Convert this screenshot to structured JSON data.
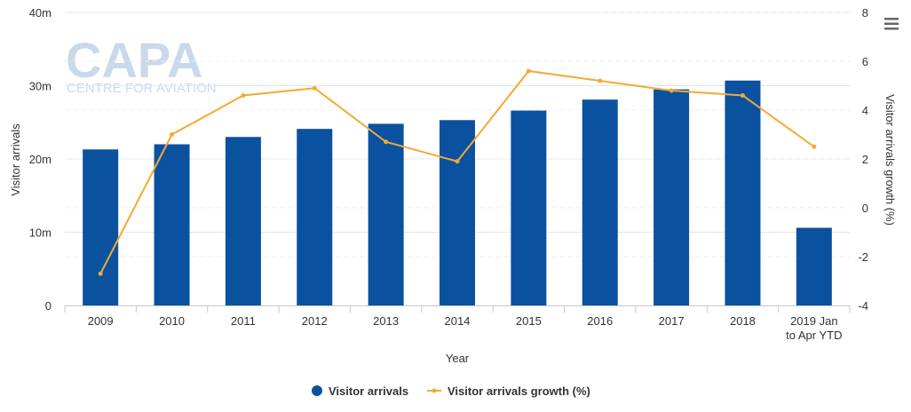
{
  "watermark": {
    "brand": "CAPA",
    "tagline": "CENTRE FOR AVIATION"
  },
  "chart_data": {
    "type": "bar+line",
    "categories": [
      "2009",
      "2010",
      "2011",
      "2012",
      "2013",
      "2014",
      "2015",
      "2016",
      "2017",
      "2018",
      "2019 Jan to Apr YTD"
    ],
    "category_lines": [
      [
        "2009"
      ],
      [
        "2010"
      ],
      [
        "2011"
      ],
      [
        "2012"
      ],
      [
        "2013"
      ],
      [
        "2014"
      ],
      [
        "2015"
      ],
      [
        "2016"
      ],
      [
        "2017"
      ],
      [
        "2018"
      ],
      [
        "2019 Jan",
        "to Apr YTD"
      ]
    ],
    "series": [
      {
        "name": "Visitor arrivals",
        "type": "bar",
        "axis": "left",
        "color": "#0a52a0",
        "values": [
          21.3,
          22.0,
          23.0,
          24.1,
          24.8,
          25.3,
          26.6,
          28.1,
          29.5,
          30.7,
          10.6
        ]
      },
      {
        "name": "Visitor arrivals growth (%)",
        "type": "line",
        "axis": "right",
        "color": "#f4a934",
        "values": [
          -2.7,
          3.0,
          4.6,
          4.9,
          2.7,
          1.9,
          5.6,
          5.2,
          4.8,
          4.6,
          2.5
        ]
      }
    ],
    "xlabel": "Year",
    "ylabel_left": "Visitor arrivals",
    "ylabel_right": "Visitor arrivals growth (%)",
    "ylim_left": [
      0,
      40
    ],
    "yticks_left": [
      "0",
      "10m",
      "20m",
      "30m",
      "40m"
    ],
    "ylim_right": [
      -4,
      8
    ],
    "yticks_right": [
      "-4",
      "-2",
      "0",
      "2",
      "4",
      "6",
      "8"
    ],
    "grid": true,
    "legend_position": "bottom-center"
  }
}
